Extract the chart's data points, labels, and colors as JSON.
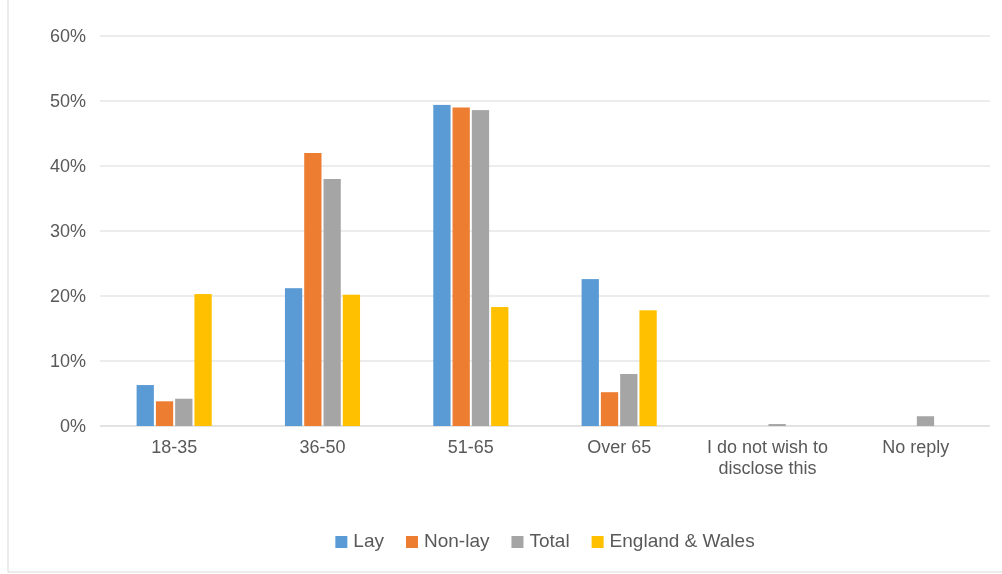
{
  "chart_data": {
    "type": "bar",
    "categories": [
      "18-35",
      "36-50",
      "51-65",
      "Over 65",
      "I do not wish to disclose this",
      "No reply"
    ],
    "series": [
      {
        "name": "Lay",
        "color": "#5b9bd5",
        "values": [
          6.3,
          21.2,
          49.4,
          22.6,
          0,
          0
        ]
      },
      {
        "name": "Non-lay",
        "color": "#ed7d31",
        "values": [
          3.8,
          42,
          49,
          5.2,
          0,
          0
        ]
      },
      {
        "name": "Total",
        "color": "#a5a5a5",
        "values": [
          4.2,
          38,
          48.6,
          8,
          0.3,
          1.5
        ]
      },
      {
        "name": "England & Wales",
        "color": "#ffc000",
        "values": [
          20.3,
          20.2,
          18.3,
          17.8,
          0,
          0
        ]
      }
    ],
    "ylim": [
      0,
      60
    ],
    "yticks": [
      {
        "value": 0,
        "label": "0%"
      },
      {
        "value": 10,
        "label": "10%"
      },
      {
        "value": 20,
        "label": "20%"
      },
      {
        "value": 30,
        "label": "30%"
      },
      {
        "value": 40,
        "label": "40%"
      },
      {
        "value": 50,
        "label": "50%"
      },
      {
        "value": 60,
        "label": "60%"
      }
    ],
    "grid": "y",
    "legend": "bottom"
  }
}
